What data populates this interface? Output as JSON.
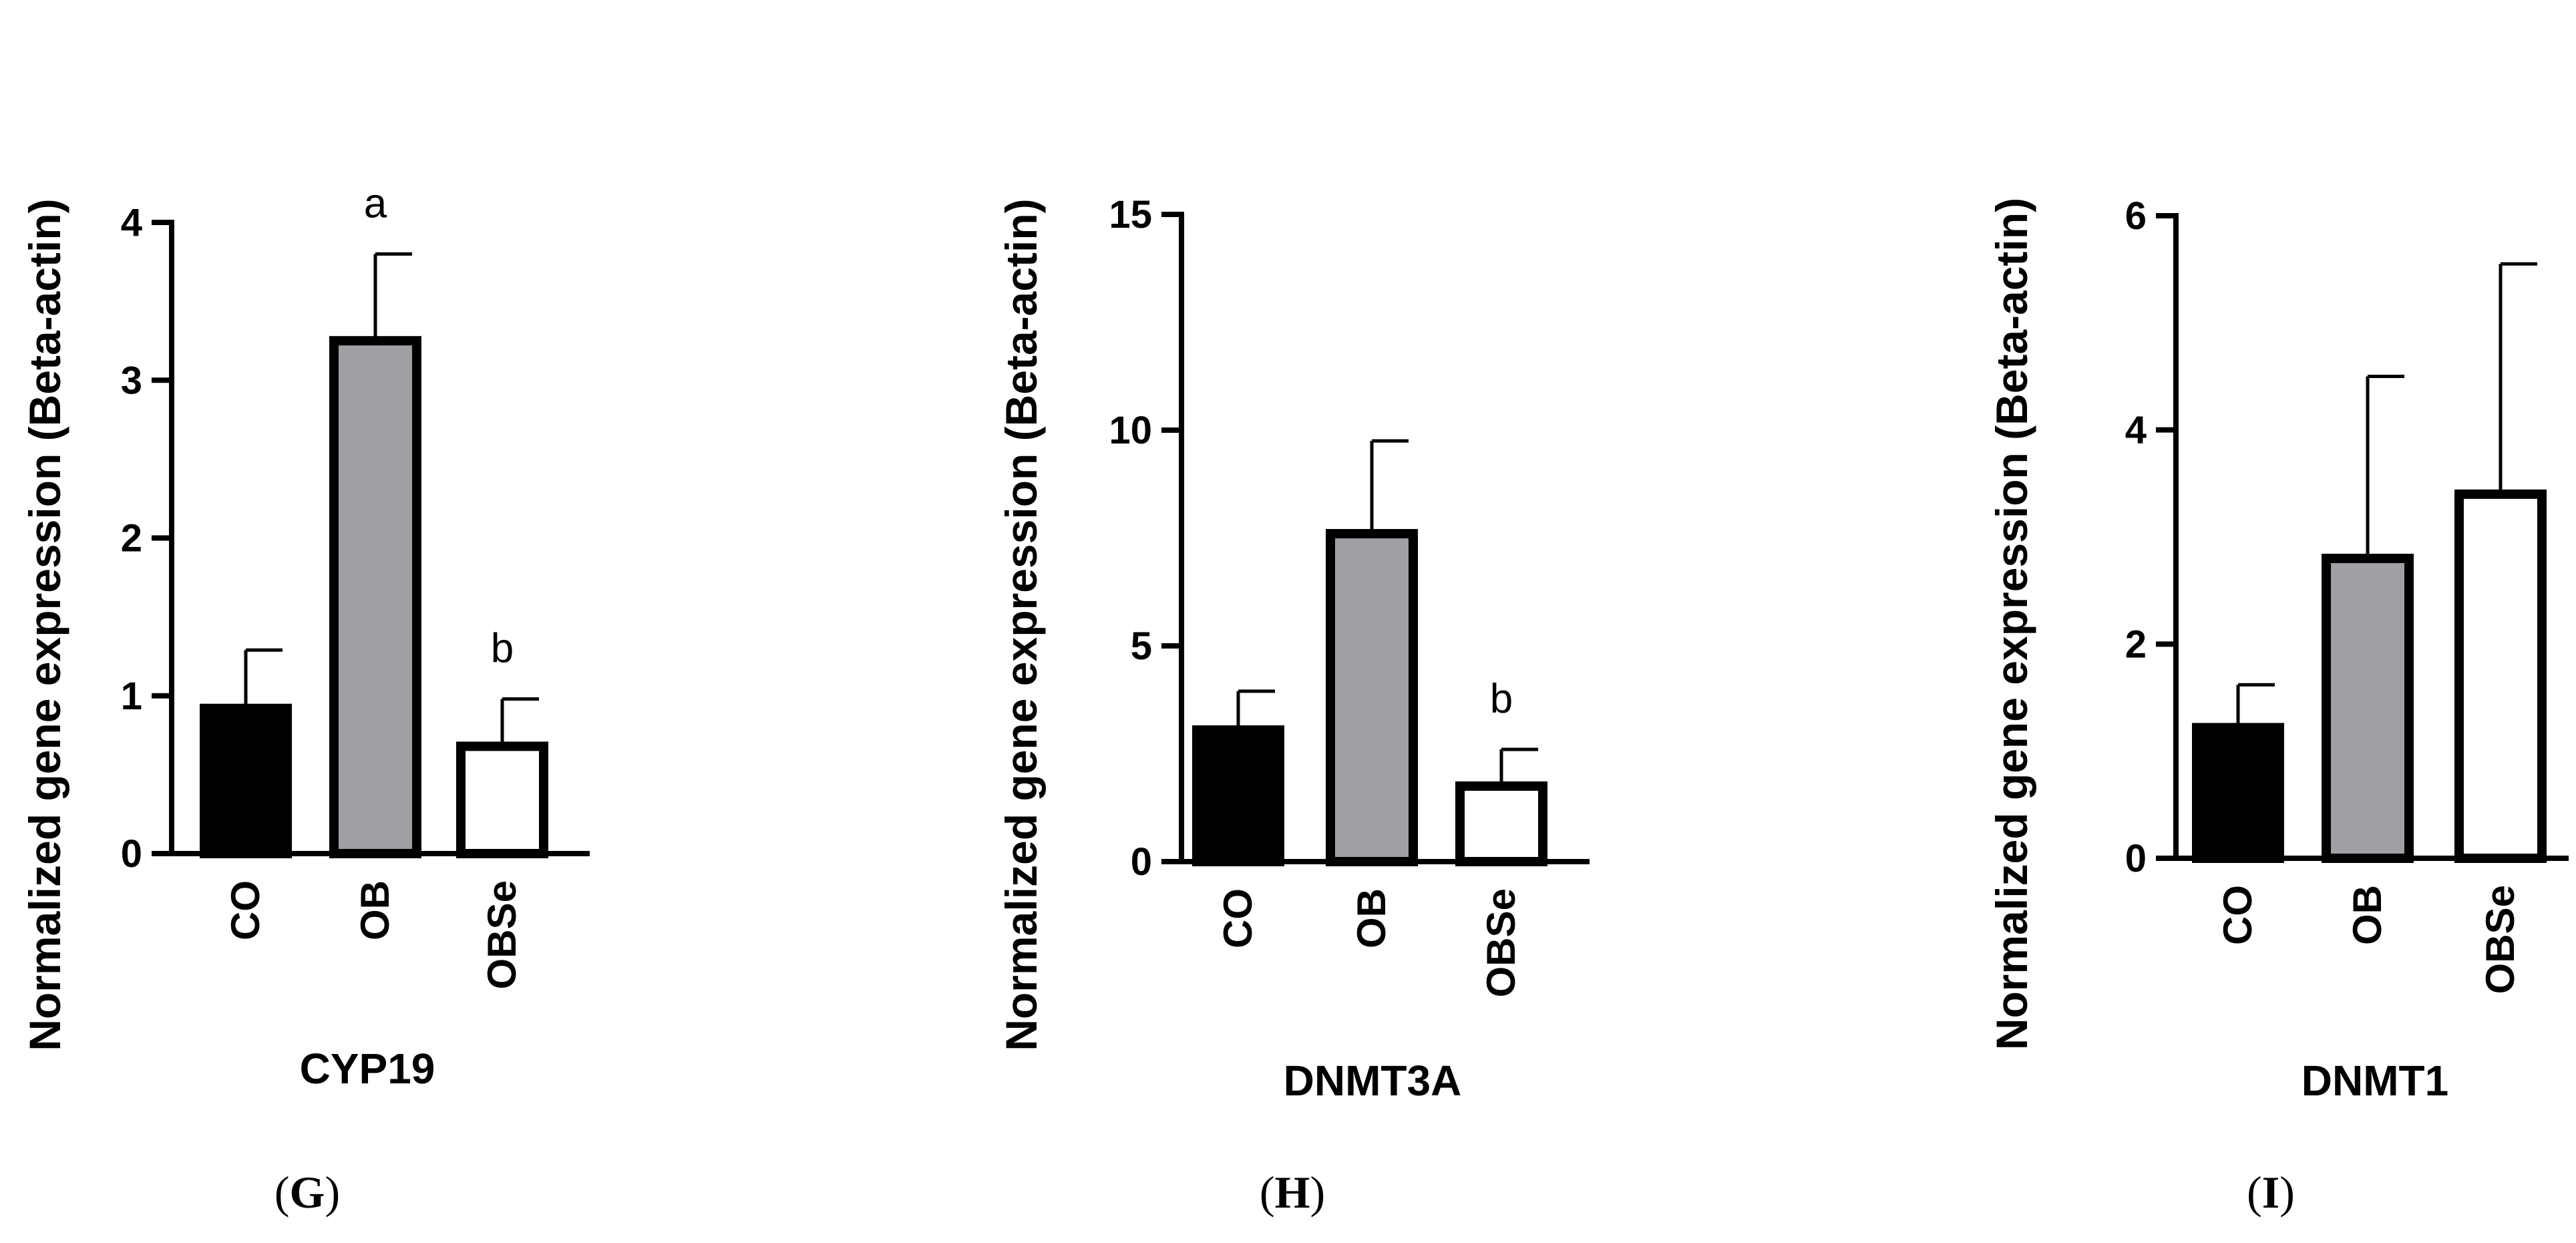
{
  "chart_data": [
    {
      "type": "bar",
      "title": "CYP19",
      "panel_label": "G",
      "ylabel": "Normalized gene expression (Beta-actin)",
      "xlabel": "",
      "categories": [
        "CO",
        "OB",
        "OBSe"
      ],
      "values": [
        0.92,
        3.25,
        0.68
      ],
      "error_upper": [
        1.29,
        3.8,
        0.98
      ],
      "annotations": [
        "",
        "a",
        "b"
      ],
      "ylim": [
        0,
        4
      ],
      "yticks": [
        "0",
        "1",
        "2",
        "3",
        "4"
      ],
      "bar_colors": [
        "#000000",
        "#a09fa4",
        "#ffffff"
      ]
    },
    {
      "type": "bar",
      "title": "DNMT3A",
      "panel_label": "H",
      "ylabel": "Normalized gene expression (Beta-actin)",
      "xlabel": "",
      "categories": [
        "CO",
        "OB",
        "OBSe"
      ],
      "values": [
        3.05,
        7.6,
        1.75
      ],
      "error_upper": [
        3.95,
        9.75,
        2.6
      ],
      "annotations": [
        "",
        "",
        "b"
      ],
      "ylim": [
        0,
        15
      ],
      "yticks": [
        "0",
        "5",
        "10",
        "15"
      ],
      "bar_colors": [
        "#000000",
        "#a09fa4",
        "#ffffff"
      ]
    },
    {
      "type": "bar",
      "title": "DNMT1",
      "panel_label": "I",
      "ylabel": "Normalized gene expression (Beta-actin)",
      "xlabel": "",
      "categories": [
        "CO",
        "OB",
        "OBSe"
      ],
      "values": [
        1.22,
        2.8,
        3.4
      ],
      "error_upper": [
        1.62,
        4.5,
        5.55
      ],
      "annotations": [
        "",
        "",
        ""
      ],
      "ylim": [
        0,
        6
      ],
      "yticks": [
        "0",
        "2",
        "4",
        "6"
      ],
      "bar_colors": [
        "#000000",
        "#a09fa4",
        "#ffffff"
      ]
    }
  ]
}
